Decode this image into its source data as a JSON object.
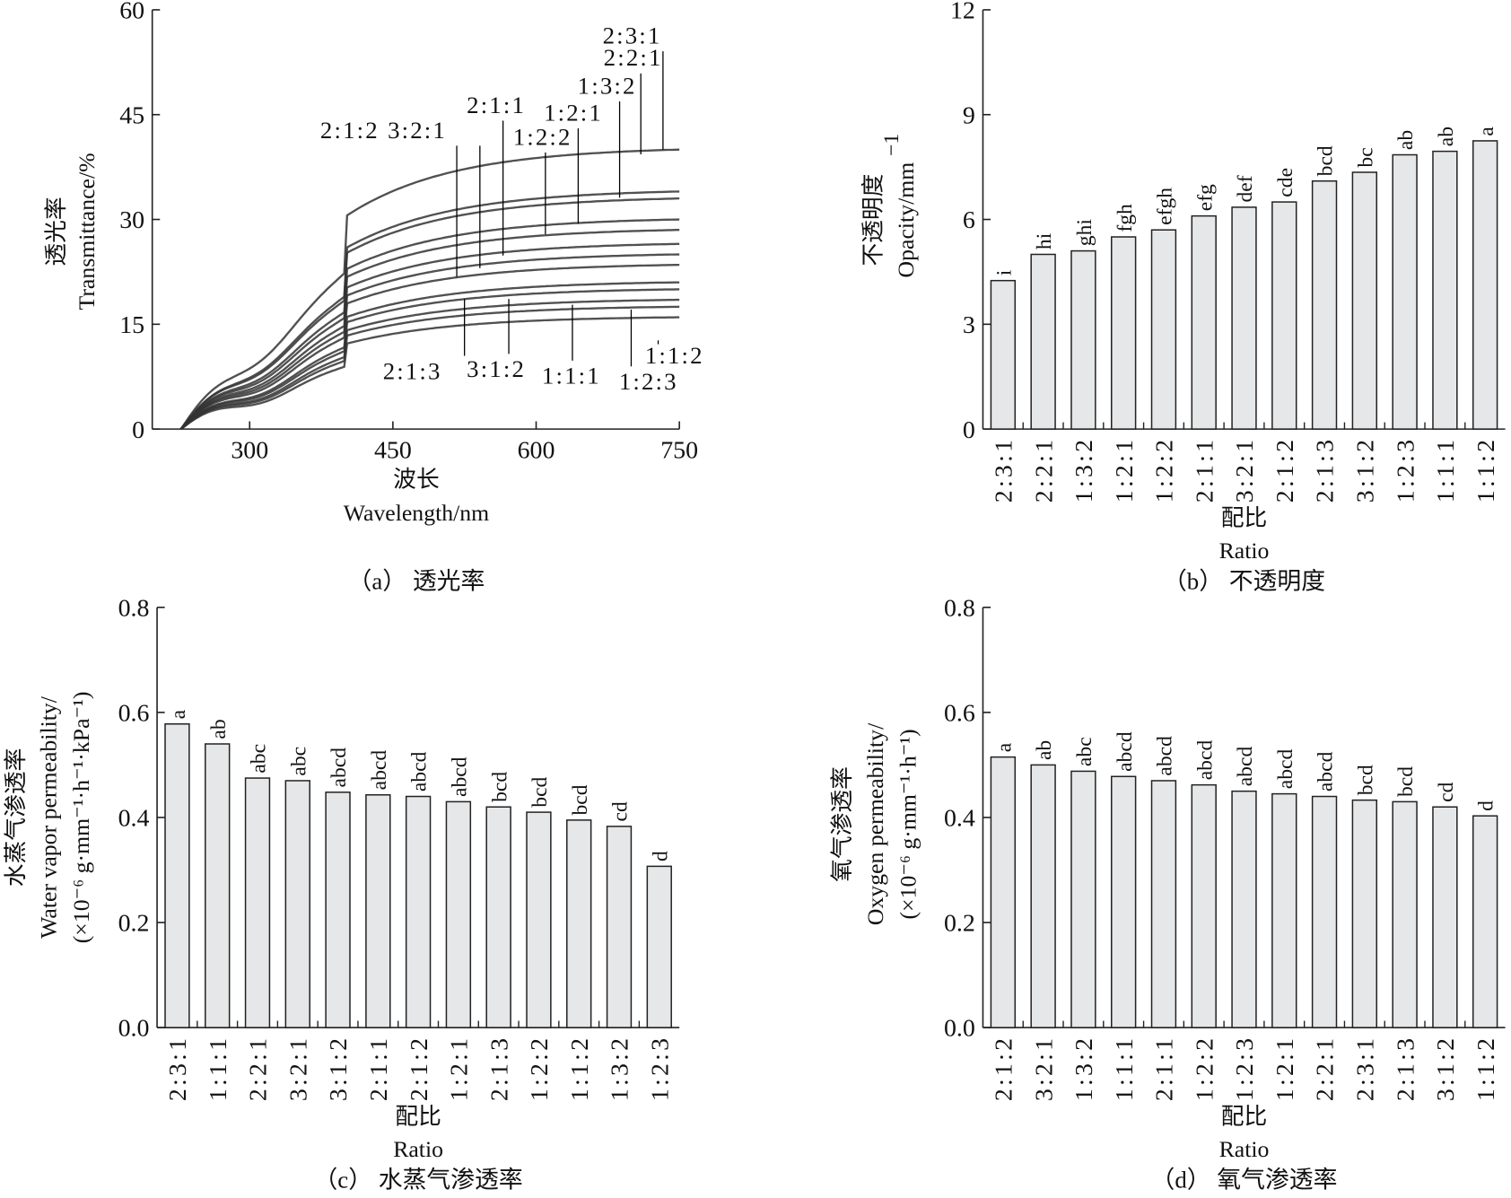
{
  "chart_data": [
    {
      "type": "line",
      "title": "",
      "caption": "（a） 透光率",
      "xlabel_cn": "波长",
      "xlabel": "Wavelength/nm",
      "ylabel_cn": "透光率",
      "ylabel": "Transmittance/%",
      "xlim": [
        198,
        750
      ],
      "ylim": [
        0,
        60
      ],
      "xticks": [
        "300",
        "450",
        "600",
        "750"
      ],
      "xtick_values": [
        300,
        450,
        600,
        750
      ],
      "yticks": [
        "0",
        "15",
        "30",
        "45",
        "60"
      ],
      "ytick_values": [
        0,
        15,
        30,
        45,
        60
      ],
      "series": [
        {
          "name": "2:3:1",
          "value_at_750": 40
        },
        {
          "name": "2:2:1",
          "value_at_750": 34
        },
        {
          "name": "1:3:2",
          "value_at_750": 33
        },
        {
          "name": "1:2:1",
          "value_at_750": 30
        },
        {
          "name": "1:2:2",
          "value_at_750": 28.5
        },
        {
          "name": "2:1:1",
          "value_at_750": 26.5
        },
        {
          "name": "3:2:1",
          "value_at_750": 25
        },
        {
          "name": "2:1:2",
          "value_at_750": 23.5
        },
        {
          "name": "2:1:3",
          "value_at_750": 21
        },
        {
          "name": "3:1:2",
          "value_at_750": 20
        },
        {
          "name": "1:1:1",
          "value_at_750": 18.5
        },
        {
          "name": "1:2:3",
          "value_at_750": 17.5
        },
        {
          "name": "1:1:2",
          "value_at_750": 16
        }
      ]
    },
    {
      "type": "bar",
      "caption": "（b） 不透明度",
      "xlabel_cn": "配比",
      "xlabel": "Ratio",
      "ylabel_cn": "不透明度",
      "ylabel": "Opacity/mm",
      "ylabel_sup": "−1",
      "ylim": [
        0,
        12
      ],
      "yticks": [
        "0",
        "3",
        "6",
        "9",
        "12"
      ],
      "ytick_values": [
        0,
        3,
        6,
        9,
        12
      ],
      "categories": [
        "2:3:1",
        "2:2:1",
        "1:3:2",
        "1:2:1",
        "1:2:2",
        "2:1:1",
        "3:2:1",
        "2:1:2",
        "2:1:3",
        "3:1:2",
        "1:2:3",
        "1:1:1",
        "1:1:2"
      ],
      "values": [
        4.25,
        5.0,
        5.1,
        5.5,
        5.7,
        6.1,
        6.35,
        6.5,
        7.1,
        7.35,
        7.85,
        7.95,
        8.25
      ],
      "significance": [
        "i",
        "hi",
        "ghi",
        "fgh",
        "efgh",
        "efg",
        "def",
        "cde",
        "bcd",
        "bc",
        "ab",
        "ab",
        "a"
      ]
    },
    {
      "type": "bar",
      "caption": "（c） 水蒸气渗透率",
      "xlabel_cn": "配比",
      "xlabel": "Ratio",
      "ylabel_cn": "水蒸气渗透率",
      "ylabel": "Water vapor permeability/",
      "ylabel_unit": "(×10⁻⁶ g·mm⁻¹·h⁻¹·kPa⁻¹)",
      "ylim": [
        0,
        0.8
      ],
      "yticks": [
        "0.0",
        "0.2",
        "0.4",
        "0.6",
        "0.8"
      ],
      "ytick_values": [
        0,
        0.2,
        0.4,
        0.6,
        0.8
      ],
      "categories": [
        "2:3:1",
        "1:1:1",
        "2:2:1",
        "3:2:1",
        "3:1:2",
        "2:1:1",
        "2:1:2",
        "1:2:1",
        "2:1:3",
        "1:2:2",
        "1:1:2",
        "1:3:2",
        "1:2:3"
      ],
      "values": [
        0.578,
        0.54,
        0.475,
        0.47,
        0.448,
        0.443,
        0.44,
        0.43,
        0.42,
        0.41,
        0.395,
        0.383,
        0.307
      ],
      "significance": [
        "a",
        "ab",
        "abc",
        "abc",
        "abcd",
        "abcd",
        "abcd",
        "abcd",
        "bcd",
        "bcd",
        "bcd",
        "cd",
        "d"
      ]
    },
    {
      "type": "bar",
      "caption": "（d） 氧气渗透率",
      "xlabel_cn": "配比",
      "xlabel": "Ratio",
      "ylabel_cn": "氧气渗透率",
      "ylabel": "Oxygen permeability/",
      "ylabel_unit": "(×10⁻⁶ g·mm⁻¹·h⁻¹)",
      "ylim": [
        0,
        0.8
      ],
      "yticks": [
        "0.0",
        "0.2",
        "0.4",
        "0.6",
        "0.8"
      ],
      "ytick_values": [
        0,
        0.2,
        0.4,
        0.6,
        0.8
      ],
      "categories": [
        "2:1:2",
        "3:2:1",
        "1:3:2",
        "1:1:1",
        "2:1:1",
        "1:2:2",
        "1:2:3",
        "1:2:1",
        "2:2:1",
        "2:3:1",
        "2:1:3",
        "3:1:2",
        "1:1:2"
      ],
      "values": [
        0.515,
        0.5,
        0.488,
        0.478,
        0.47,
        0.462,
        0.45,
        0.445,
        0.44,
        0.433,
        0.43,
        0.42,
        0.403
      ],
      "significance": [
        "a",
        "ab",
        "abc",
        "abcd",
        "abcd",
        "abcd",
        "abcd",
        "abcd",
        "abcd",
        "bcd",
        "bcd",
        "cd",
        "d"
      ]
    }
  ],
  "colors": {
    "bar_fill": "#e6e7e8",
    "stroke": "#222222",
    "line": "#333333"
  }
}
